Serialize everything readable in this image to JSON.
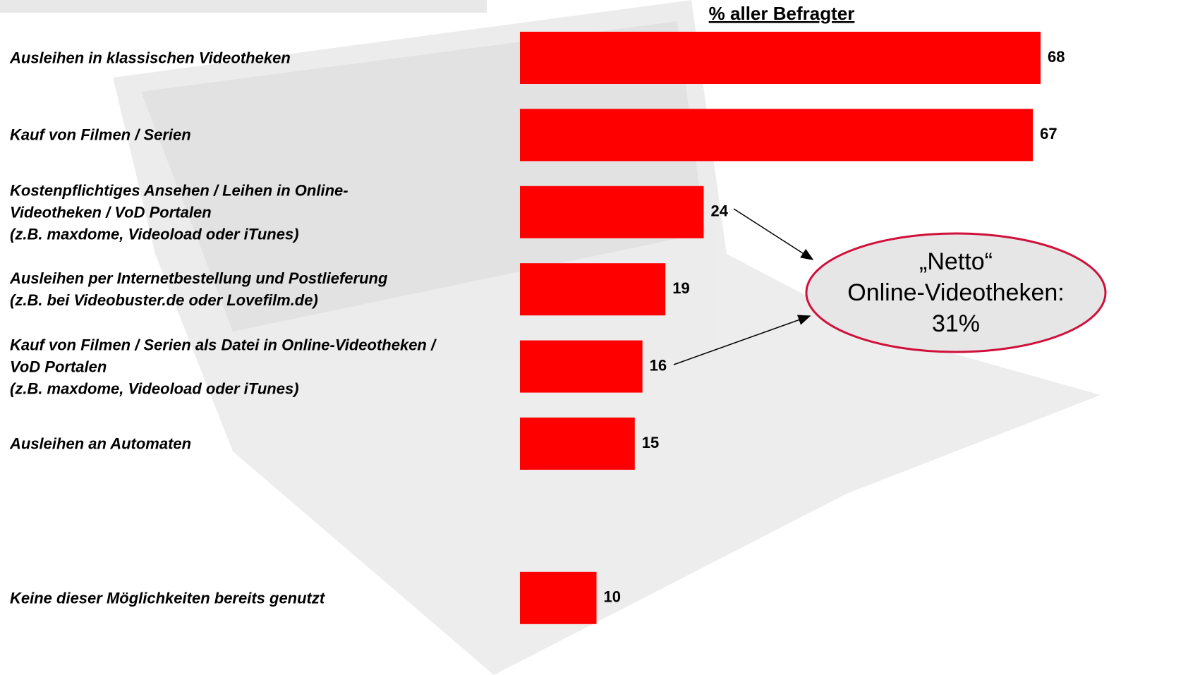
{
  "chart_data": {
    "type": "bar",
    "orientation": "horizontal",
    "header": "% aller Befragter",
    "categories": [
      "Ausleihen in klassischen Videotheken",
      "Kauf von Filmen / Serien",
      "Kostenpflichtiges Ansehen / Leihen in Online-\nVideotheken / VoD Portalen\n(z.B. maxdome, Videoload oder iTunes)",
      "Ausleihen per Internetbestellung und Postlieferung\n(z.B. bei Videobuster.de oder Lovefilm.de)",
      "Kauf von Filmen / Serien als Datei in Online-Videotheken /\nVoD Portalen\n(z.B. maxdome, Videoload oder iTunes)",
      "Ausleihen an Automaten",
      "Keine dieser Möglichkeiten bereits genutzt"
    ],
    "values": [
      68,
      67,
      24,
      19,
      16,
      15,
      10
    ],
    "color": "#ff0000",
    "annotation": "„Netto“\nOnline-Videotheken:\n31%"
  }
}
